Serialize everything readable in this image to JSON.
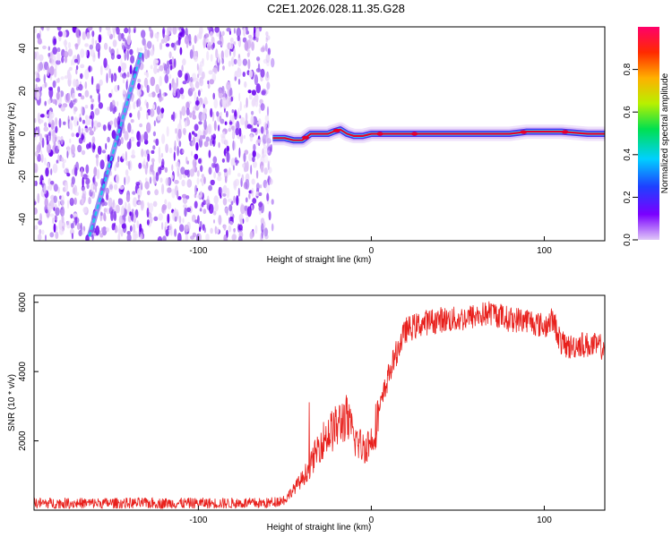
{
  "title": "C2E1.2026.028.11.35.G28",
  "chart_data": [
    {
      "type": "heatmap",
      "xlabel": "Height of straight line (km)",
      "ylabel": "Frequency (Hz)",
      "xlim": [
        -195,
        135
      ],
      "ylim": [
        -50,
        50
      ],
      "xticks": [
        -100,
        0,
        100
      ],
      "xtick_labels": [
        "-100",
        "0",
        "100"
      ],
      "yticks": [
        -40,
        -20,
        0,
        20,
        40
      ],
      "ytick_labels": [
        "-40",
        "-20",
        "0",
        "20",
        "40"
      ],
      "noise_region_x": [
        -195,
        -57
      ],
      "streak": {
        "x_start": -163,
        "y_start": -48,
        "x_end": -133,
        "y_end": 38
      },
      "carrier_trace": {
        "x": [
          -57,
          -50,
          -45,
          -40,
          -35,
          -30,
          -25,
          -22,
          -18,
          -14,
          -10,
          -5,
          0,
          5,
          20,
          40,
          60,
          80,
          90,
          100,
          110,
          125,
          135
        ],
        "y": [
          -2,
          -2,
          -3,
          -3,
          0,
          0,
          0,
          1,
          2,
          0,
          -1,
          -1,
          0,
          0,
          0,
          0,
          0,
          0,
          1,
          1,
          1,
          0,
          0
        ]
      },
      "colorbar": {
        "label": "Normalized spectral amplitude",
        "range": [
          0,
          1
        ],
        "ticks": [
          0.0,
          0.2,
          0.4,
          0.6,
          0.8
        ],
        "tick_labels": [
          "0.0",
          "0.2",
          "0.4",
          "0.6",
          "0.8"
        ]
      },
      "colors": {
        "noise": "#6a00f0",
        "trace_high": "#e8002a",
        "streak": "#22c8e8"
      }
    },
    {
      "type": "line",
      "xlabel": "Height of straight line (km)",
      "ylabel": "SNR (10 * v/v)",
      "xlim": [
        -195,
        135
      ],
      "ylim": [
        0,
        6200
      ],
      "xticks": [
        -100,
        0,
        100
      ],
      "xtick_labels": [
        "-100",
        "0",
        "100"
      ],
      "yticks": [
        2000,
        4000,
        6000
      ],
      "ytick_labels": [
        "2000",
        "4000",
        "6000"
      ],
      "series": [
        {
          "name": "SNR",
          "color": "#e8201c",
          "x": [
            -195,
            -150,
            -100,
            -60,
            -50,
            -45,
            -40,
            -35,
            -30,
            -25,
            -20,
            -15,
            -10,
            -5,
            0,
            5,
            10,
            15,
            20,
            25,
            30,
            40,
            50,
            60,
            70,
            80,
            90,
            100,
            105,
            110,
            115,
            120,
            135
          ],
          "y": [
            200,
            200,
            200,
            200,
            300,
            600,
            900,
            1300,
            1900,
            2200,
            2400,
            2700,
            2100,
            1800,
            2000,
            2900,
            3900,
            4600,
            5200,
            5300,
            5400,
            5500,
            5500,
            5600,
            5700,
            5500,
            5500,
            5300,
            5500,
            4800,
            4700,
            4800,
            4700
          ]
        }
      ]
    }
  ]
}
